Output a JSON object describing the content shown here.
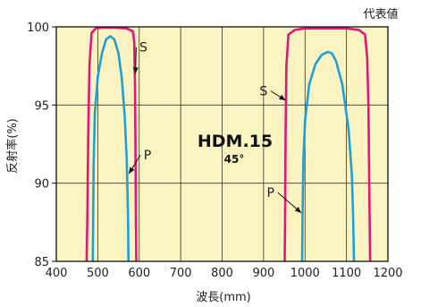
{
  "chart_data": {
    "type": "line",
    "note": "代表値",
    "title": "HDM.15",
    "subtitle": "45°",
    "xlabel": "波長(mm)",
    "ylabel": "反射率(%)",
    "xlim": [
      400,
      1200
    ],
    "ylim": [
      85,
      100
    ],
    "xticks": [
      400,
      500,
      600,
      700,
      800,
      900,
      1000,
      1100,
      1200
    ],
    "yticks": [
      85,
      90,
      95,
      100
    ],
    "grid": true,
    "colors": {
      "S": "#e0177a",
      "P": "#1f9fd8",
      "background": "#fbf4c0"
    },
    "series": [
      {
        "name": "S",
        "color": "#e0177a",
        "segments": [
          {
            "x": [
              473,
              475,
              477,
              480,
              485,
              495,
              510,
              540,
              570,
              585,
              588,
              590,
              591,
              592,
              593
            ],
            "y": [
              85,
              88,
              93,
              97.5,
              99.6,
              99.9,
              99.95,
              99.95,
              99.9,
              99.7,
              99.0,
              96.0,
              92.0,
              88.0,
              85
            ]
          },
          {
            "x": [
              951,
              952,
              953,
              955,
              960,
              975,
              1000,
              1050,
              1100,
              1130,
              1145,
              1150,
              1153,
              1155,
              1157
            ],
            "y": [
              85,
              88,
              93,
              97.5,
              99.5,
              99.8,
              99.9,
              99.9,
              99.9,
              99.8,
              99.5,
              98.0,
              95.0,
              90.0,
              85
            ]
          }
        ]
      },
      {
        "name": "P",
        "color": "#1f9fd8",
        "segments": [
          {
            "x": [
              488,
              489,
              490,
              493,
              500,
              510,
              520,
              530,
              540,
              550,
              558,
              565,
              570,
              573,
              574
            ],
            "y": [
              85,
              88,
              91,
              94.5,
              96.8,
              98.3,
              99.2,
              99.4,
              99.2,
              98.3,
              96.7,
              94.3,
              91.5,
              88.0,
              85
            ]
          },
          {
            "x": [
              993,
              994,
              996,
              1000,
              1010,
              1025,
              1040,
              1055,
              1065,
              1075,
              1090,
              1105,
              1113,
              1116,
              1118
            ],
            "y": [
              85,
              88,
              91.5,
              94.0,
              96.3,
              97.6,
              98.2,
              98.4,
              98.3,
              97.8,
              96.3,
              93.5,
              90.5,
              88.0,
              85
            ]
          }
        ]
      }
    ],
    "annotations": [
      {
        "text": "S",
        "label_x": 610,
        "label_y": 98.7,
        "arrow_to_x": 591,
        "arrow_to_y": 97.0
      },
      {
        "text": "P",
        "label_x": 620,
        "label_y": 91.8,
        "arrow_to_x": 575,
        "arrow_to_y": 90.6
      },
      {
        "text": "S",
        "label_x": 900,
        "label_y": 95.9,
        "arrow_to_x": 953,
        "arrow_to_y": 95.3
      },
      {
        "text": "P",
        "label_x": 917,
        "label_y": 89.4,
        "arrow_to_x": 991,
        "arrow_to_y": 88.1
      }
    ]
  }
}
